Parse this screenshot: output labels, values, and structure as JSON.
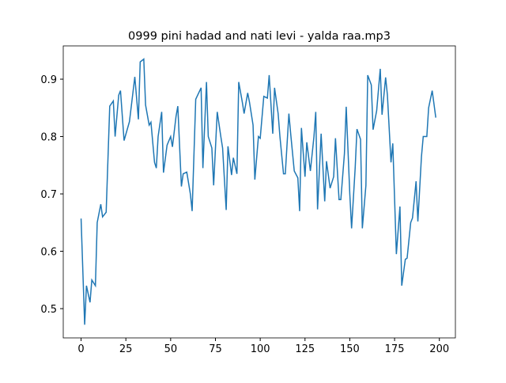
{
  "chart_data": {
    "type": "line",
    "title": "0999 pini hadad and nati levi - yalda raa.mp3",
    "x": [
      0,
      2,
      3,
      5,
      6,
      8,
      9,
      11,
      12,
      14,
      16,
      18,
      19,
      21,
      22,
      24,
      27,
      30,
      32,
      33,
      35,
      36,
      38,
      39,
      41,
      42,
      43,
      45,
      46,
      48,
      50,
      51,
      53,
      54,
      56,
      57,
      59,
      61,
      62,
      64,
      67,
      68,
      70,
      71,
      73,
      74,
      76,
      78,
      79,
      81,
      82,
      84,
      85,
      87,
      88,
      90,
      91,
      93,
      94,
      96,
      97,
      99,
      100,
      102,
      104,
      105,
      107,
      108,
      110,
      111,
      113,
      114,
      116,
      117,
      119,
      121,
      122,
      123,
      125,
      126,
      128,
      130,
      131,
      132,
      134,
      136,
      137,
      139,
      141,
      142,
      144,
      145,
      147,
      148,
      150,
      151,
      153,
      154,
      156,
      157,
      159,
      160,
      162,
      163,
      165,
      167,
      168,
      170,
      171,
      173,
      174,
      176,
      178,
      179,
      181,
      182,
      184,
      185,
      187,
      188,
      190,
      191,
      193,
      194,
      196,
      198
    ],
    "series": [
      {
        "color": "#1f77b4",
        "values": [
          0.657,
          0.472,
          0.54,
          0.511,
          0.55,
          0.54,
          0.65,
          0.682,
          0.66,
          0.668,
          0.853,
          0.862,
          0.8,
          0.872,
          0.88,
          0.793,
          0.826,
          0.904,
          0.83,
          0.93,
          0.935,
          0.855,
          0.82,
          0.825,
          0.755,
          0.745,
          0.8,
          0.843,
          0.737,
          0.785,
          0.8,
          0.782,
          0.835,
          0.853,
          0.713,
          0.735,
          0.738,
          0.7,
          0.67,
          0.865,
          0.885,
          0.745,
          0.895,
          0.8,
          0.78,
          0.715,
          0.843,
          0.8,
          0.78,
          0.672,
          0.783,
          0.733,
          0.763,
          0.735,
          0.895,
          0.86,
          0.84,
          0.876,
          0.86,
          0.82,
          0.725,
          0.8,
          0.797,
          0.87,
          0.867,
          0.907,
          0.805,
          0.885,
          0.84,
          0.8,
          0.735,
          0.735,
          0.84,
          0.805,
          0.74,
          0.728,
          0.67,
          0.815,
          0.73,
          0.79,
          0.74,
          0.8,
          0.843,
          0.673,
          0.805,
          0.687,
          0.757,
          0.71,
          0.73,
          0.797,
          0.69,
          0.69,
          0.77,
          0.852,
          0.7,
          0.64,
          0.745,
          0.813,
          0.795,
          0.64,
          0.715,
          0.907,
          0.89,
          0.812,
          0.845,
          0.918,
          0.838,
          0.903,
          0.872,
          0.755,
          0.788,
          0.595,
          0.678,
          0.54,
          0.586,
          0.588,
          0.65,
          0.658,
          0.722,
          0.652,
          0.765,
          0.8,
          0.8,
          0.85,
          0.88,
          0.833
        ]
      }
    ],
    "xlim": [
      -9.95,
      208.95
    ],
    "ylim": [
      0.449,
      0.958
    ],
    "xticks": [
      0,
      25,
      50,
      75,
      100,
      125,
      150,
      175,
      200
    ],
    "yticks": [
      0.5,
      0.6,
      0.7,
      0.8,
      0.9
    ]
  }
}
